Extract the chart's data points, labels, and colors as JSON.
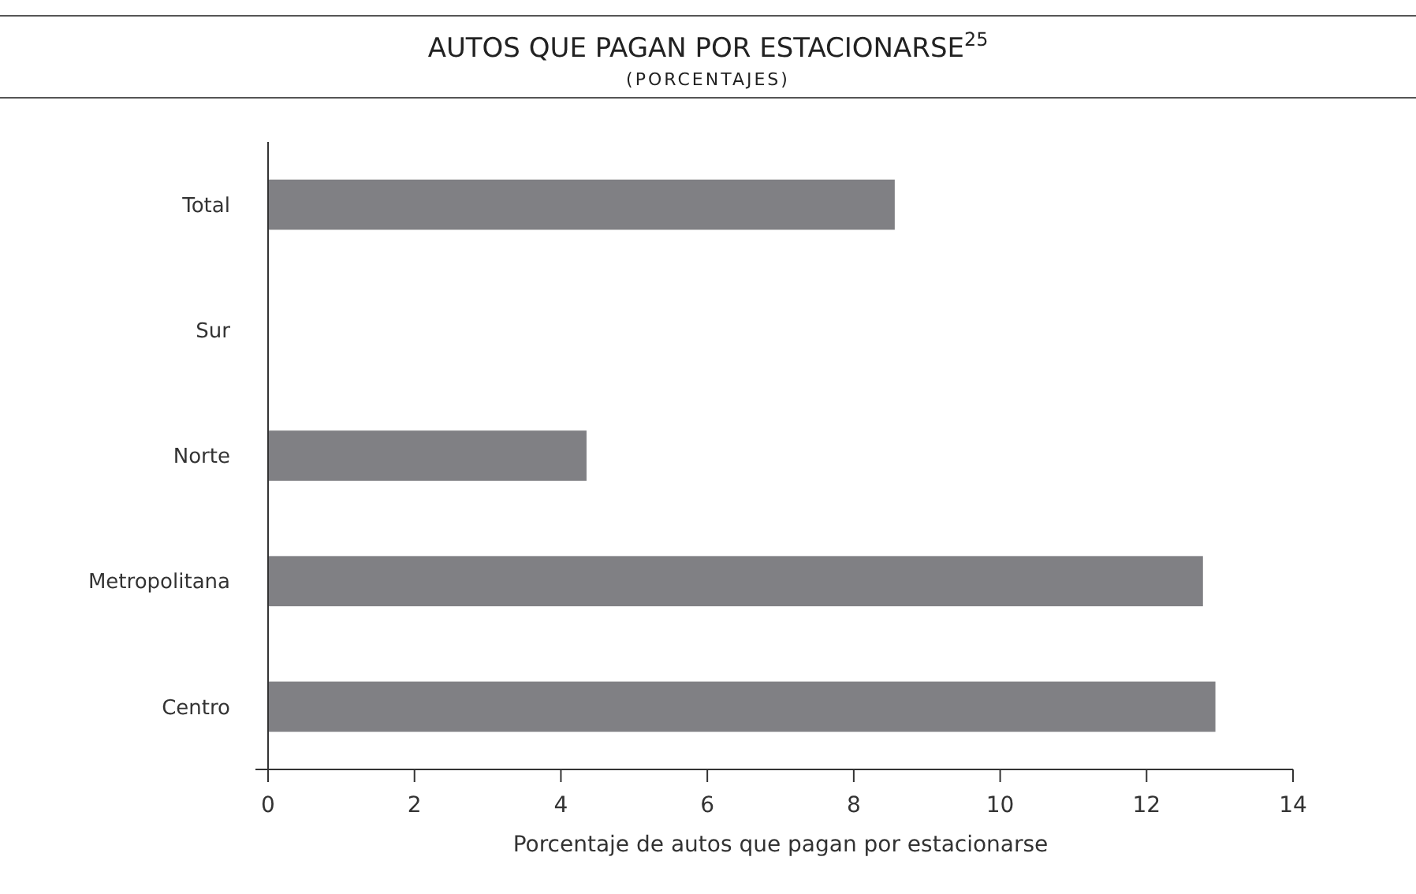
{
  "chart_data": {
    "type": "bar",
    "orientation": "horizontal",
    "title": "AUTOS QUE PAGAN POR ESTACIONARSE$^{25}$",
    "subtitle": "(PORCENTAJES)",
    "xlabel": "Porcentaje de autos que pagan por estacionarse",
    "categories": [
      "Total",
      "Sur",
      "Norte",
      "Metropolitana",
      "Centro"
    ],
    "values": [
      8.56,
      null,
      4.35,
      12.77,
      12.94
    ],
    "color": "#808084",
    "xlim": [
      0,
      14
    ],
    "xticks": [
      0,
      2,
      4,
      6,
      8,
      10,
      12,
      14
    ],
    "grid": false
  }
}
